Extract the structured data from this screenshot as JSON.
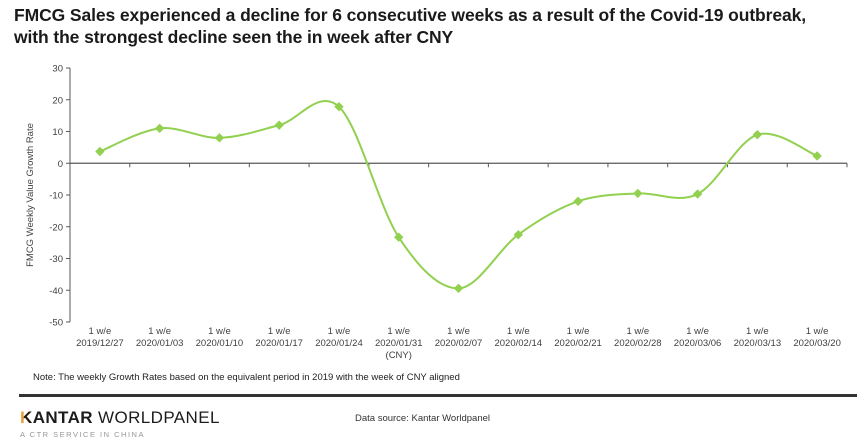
{
  "title": "FMCG Sales experienced a decline for 6 consecutive weeks as a result of the Covid-19 outbreak, with the strongest decline seen the in week after CNY",
  "chart_data": {
    "type": "line",
    "smooth": true,
    "title": "",
    "xlabel": "",
    "ylabel": "FMCG Weekly  Value Growth Rate",
    "x_label_prefix": "1 w/e",
    "categories": [
      "2019/12/27",
      "2020/01/03",
      "2020/01/10",
      "2020/01/17",
      "2020/01/24",
      "2020/01/31",
      "2020/02/07",
      "2020/02/14",
      "2020/02/21",
      "2020/02/28",
      "2020/03/06",
      "2020/03/13",
      "2020/03/20"
    ],
    "values": [
      3.7,
      11,
      8,
      12,
      17.8,
      -23.3,
      -39.4,
      -22.5,
      -12,
      -9.5,
      -9.7,
      9,
      2.3
    ],
    "cny_annotation": "(CNY)",
    "cny_index": 5,
    "ylim": [
      -50,
      30
    ],
    "yticks": [
      30,
      20,
      10,
      0,
      -10,
      -20,
      -30,
      -40,
      -50
    ],
    "grid": false,
    "legend": "none",
    "line_color": "#92D050",
    "marker": "diamond",
    "axis_color": "#595959",
    "tick_label_color": "#404040"
  },
  "note": "Note: The weekly Growth Rates based on the equivalent period in 2019 with the week of CNY aligned",
  "footer": {
    "logo_k": "K",
    "logo_kantar_rest": "ANTAR",
    "logo_worldpanel": " WORLDPANEL",
    "tagline": "A CTR SERVICE IN CHINA",
    "data_source": "Data source: Kantar Worldpanel",
    "accent_gold": "#E8A33D"
  }
}
